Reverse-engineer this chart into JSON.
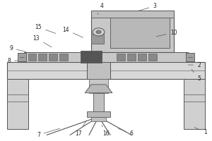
{
  "background_color": "#ffffff",
  "line_color": "#555555",
  "label_color": "#222222",
  "label_fontsize": 5.5,
  "fig_width": 3.0,
  "fig_height": 2.0,
  "dpi": 100
}
